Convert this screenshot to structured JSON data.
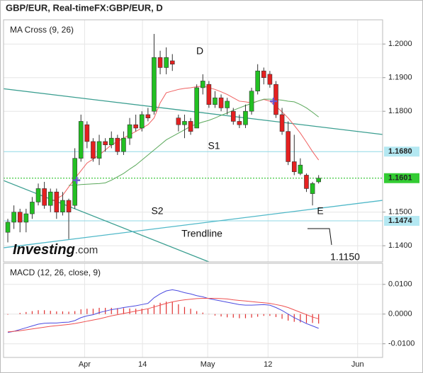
{
  "title": "GBP/EUR, Real-timeFX:GBP/EUR, D",
  "logo": {
    "brand": "Investing",
    "suffix": ".com"
  },
  "annotations": [
    "D",
    "S1",
    "S2",
    "Trendline",
    "E",
    "1.1150"
  ],
  "chart_data": [
    {
      "type": "candlestick",
      "title": "MA Cross (9, 26)",
      "xlim": [
        -0.7,
        61.5
      ],
      "xticks": [
        {
          "value": 12.6,
          "label": "Apr"
        },
        {
          "value": 22.1,
          "label": "14"
        },
        {
          "value": 32.8,
          "label": "May"
        },
        {
          "value": 42.7,
          "label": "12"
        },
        {
          "value": 57.4,
          "label": "Jun"
        }
      ],
      "ylim": [
        1.1352,
        1.2072
      ],
      "yticks": [
        {
          "value": 1.2,
          "label": "1.2000"
        },
        {
          "value": 1.19,
          "label": "1.1900"
        },
        {
          "value": 1.18,
          "label": "1.1800"
        },
        {
          "value": 1.15,
          "label": "1.1500"
        },
        {
          "value": 1.14,
          "label": "1.1400"
        }
      ],
      "grid": true,
      "up_color": "#22c022",
      "down_color": "#e52020",
      "open": [
        1.144,
        1.147,
        1.15,
        1.147,
        1.1495,
        1.153,
        1.157,
        1.152,
        1.156,
        1.15,
        1.1535,
        1.152,
        1.166,
        1.176,
        1.171,
        1.166,
        1.171,
        1.17,
        1.172,
        1.168,
        1.172,
        1.176,
        1.175,
        1.179,
        1.18,
        1.196,
        1.193,
        1.195,
        1.178,
        1.176,
        1.177,
        1.175,
        1.187,
        1.188,
        1.182,
        1.184,
        1.181,
        1.18,
        1.177,
        1.176,
        1.18,
        1.186,
        1.192,
        1.191,
        1.188,
        1.179,
        1.174,
        1.165,
        1.1615,
        1.161,
        1.1555,
        1.159
      ],
      "high": [
        1.148,
        1.152,
        1.151,
        1.151,
        1.1545,
        1.1585,
        1.159,
        1.157,
        1.157,
        1.156,
        1.154,
        1.169,
        1.179,
        1.177,
        1.172,
        1.173,
        1.172,
        1.174,
        1.173,
        1.174,
        1.178,
        1.179,
        1.18,
        1.181,
        1.203,
        1.198,
        1.199,
        1.197,
        1.179,
        1.179,
        1.178,
        1.188,
        1.191,
        1.189,
        1.186,
        1.185,
        1.184,
        1.181,
        1.179,
        1.182,
        1.187,
        1.194,
        1.193,
        1.192,
        1.189,
        1.181,
        1.177,
        1.173,
        1.166,
        1.1615,
        1.159,
        1.161
      ],
      "low": [
        1.141,
        1.145,
        1.144,
        1.144,
        1.148,
        1.152,
        1.151,
        1.15,
        1.148,
        1.149,
        1.142,
        1.151,
        1.165,
        1.169,
        1.165,
        1.164,
        1.168,
        1.169,
        1.167,
        1.167,
        1.17,
        1.174,
        1.174,
        1.177,
        1.179,
        1.191,
        1.191,
        1.192,
        1.174,
        1.172,
        1.173,
        1.175,
        1.185,
        1.181,
        1.181,
        1.18,
        1.179,
        1.176,
        1.175,
        1.175,
        1.179,
        1.185,
        1.188,
        1.187,
        1.178,
        1.173,
        1.164,
        1.161,
        1.161,
        1.156,
        1.152,
        1.1585
      ],
      "close": [
        1.147,
        1.15,
        1.147,
        1.1495,
        1.153,
        1.157,
        1.152,
        1.156,
        1.15,
        1.1535,
        1.15,
        1.166,
        1.177,
        1.171,
        1.166,
        1.171,
        1.17,
        1.172,
        1.168,
        1.172,
        1.176,
        1.175,
        1.179,
        1.178,
        1.196,
        1.193,
        1.196,
        1.194,
        1.176,
        1.177,
        1.174,
        1.187,
        1.189,
        1.182,
        1.184,
        1.181,
        1.183,
        1.177,
        1.176,
        1.18,
        1.186,
        1.192,
        1.19,
        1.188,
        1.179,
        1.174,
        1.165,
        1.162,
        1.164,
        1.157,
        1.1585,
        1.1601
      ],
      "series": [
        {
          "color": "#f06060",
          "values": [
            null,
            null,
            null,
            null,
            null,
            null,
            null,
            1.153,
            1.154,
            1.155,
            1.1575,
            1.16,
            1.1623,
            1.1646,
            1.1658,
            1.167,
            1.1685,
            1.17,
            1.171,
            1.172,
            1.173,
            1.174,
            1.175,
            1.176,
            1.178,
            1.1825,
            1.1855,
            1.186,
            1.1865,
            1.1868,
            1.187,
            1.1873,
            1.1875,
            1.187,
            1.1865,
            1.1858,
            1.185,
            1.184,
            1.183,
            1.1828,
            1.1825,
            1.183,
            1.1835,
            1.183,
            1.1815,
            1.1798,
            1.178,
            1.1758,
            1.1735,
            1.1708,
            1.168,
            1.1655
          ]
        },
        {
          "color": "#5aa85a",
          "values": [
            null,
            null,
            null,
            null,
            null,
            null,
            null,
            null,
            null,
            null,
            1.158,
            1.158,
            1.1582,
            1.1583,
            1.1584,
            1.1585,
            1.1587,
            1.1595,
            1.1605,
            1.1615,
            1.1628,
            1.164,
            1.1655,
            1.167,
            1.1685,
            1.17,
            1.1715,
            1.1725,
            1.1735,
            1.1745,
            1.1755,
            1.1762,
            1.1768,
            1.1773,
            1.178,
            1.1788,
            1.1795,
            1.1803,
            1.181,
            1.1817,
            1.1823,
            1.183,
            1.1836,
            1.1836,
            1.1835,
            1.1833,
            1.183,
            1.1828,
            1.182,
            1.181,
            1.1797,
            1.1783
          ]
        }
      ],
      "hlines": [
        {
          "value": 1.168,
          "label": "1.1680",
          "color": "#8fd8e6",
          "box": "#b4e8f2"
        },
        {
          "value": 1.1601,
          "label": "1.1601",
          "color": "#11bb11",
          "box": "#33cc33",
          "dotted": true
        },
        {
          "value": 1.1474,
          "label": "1.1474",
          "color": "#8fd8e6",
          "box": "#b4e8f2"
        }
      ],
      "trendlines": [
        {
          "x": [
            -0.7,
            61.5
          ],
          "y": [
            1.1867,
            1.1731
          ],
          "color": "#3a9e90"
        },
        {
          "x": [
            -0.7,
            33.0
          ],
          "y": [
            1.1594,
            1.1352
          ],
          "color": "#3a9e90"
        },
        {
          "x": [
            -0.7,
            61.5
          ],
          "y": [
            1.1394,
            1.1535
          ],
          "color": "#4fb8c8"
        }
      ],
      "crosses": [
        {
          "x": 11.3,
          "y": 1.1595
        },
        {
          "x": 43.6,
          "y": 1.183
        }
      ]
    },
    {
      "type": "macd",
      "title": "MACD (12, 26, close, 9)",
      "ylim": [
        -0.0146,
        0.0171
      ],
      "yticks": [
        {
          "value": 0.01,
          "label": "0.0100"
        },
        {
          "value": 0,
          "label": "0.0000"
        },
        {
          "value": -0.01,
          "label": "-0.0100"
        }
      ],
      "series": [
        {
          "color": "#4a4ae0",
          "values": [
            -0.0062,
            -0.0058,
            -0.0052,
            -0.0046,
            -0.004,
            -0.0034,
            -0.0031,
            -0.003,
            -0.003,
            -0.0028,
            -0.0027,
            -0.0022,
            -0.0012,
            -0.0006,
            -0.0002,
            0.0005,
            0.001,
            0.0015,
            0.0018,
            0.0022,
            0.0025,
            0.0028,
            0.0032,
            0.0036,
            0.0055,
            0.0068,
            0.0078,
            0.0082,
            0.0078,
            0.0072,
            0.0068,
            0.0062,
            0.0058,
            0.0052,
            0.0048,
            0.0044,
            0.004,
            0.0036,
            0.0032,
            0.003,
            0.003,
            0.0031,
            0.0032,
            0.003,
            0.0022,
            0.0012,
            0.0,
            -0.0012,
            -0.0022,
            -0.0032,
            -0.004,
            -0.0048
          ]
        },
        {
          "color": "#ee5050",
          "values": [
            -0.006,
            -0.0058,
            -0.0056,
            -0.0053,
            -0.005,
            -0.0047,
            -0.0044,
            -0.0041,
            -0.0039,
            -0.0037,
            -0.0035,
            -0.0032,
            -0.0028,
            -0.0024,
            -0.002,
            -0.0016,
            -0.0011,
            -0.0006,
            -0.0002,
            0.0002,
            0.0006,
            0.001,
            0.0014,
            0.0018,
            0.0024,
            0.003,
            0.0036,
            0.0041,
            0.0045,
            0.0048,
            0.005,
            0.0052,
            0.0053,
            0.0053,
            0.0053,
            0.0052,
            0.0051,
            0.0048,
            0.0046,
            0.0044,
            0.0042,
            0.004,
            0.0038,
            0.0036,
            0.0032,
            0.0028,
            0.0022,
            0.0014,
            0.0006,
            -0.0002,
            -0.001,
            -0.0016
          ]
        }
      ],
      "histogram": {
        "color": "#e03030",
        "values": [
          -0.0002,
          0,
          0.0004,
          0.0007,
          0.001,
          0.0013,
          0.0013,
          0.0011,
          0.0009,
          0.0009,
          0.0008,
          0.001,
          0.0016,
          0.0018,
          0.0018,
          0.0021,
          0.0021,
          0.0021,
          0.002,
          0.002,
          0.0019,
          0.0018,
          0.0018,
          0.0018,
          0.0031,
          0.0038,
          0.0042,
          0.0041,
          0.0033,
          0.0024,
          0.0018,
          0.001,
          0.0005,
          -0.0001,
          -0.0005,
          -0.0008,
          -0.0011,
          -0.0012,
          -0.0014,
          -0.0014,
          -0.0012,
          -0.0009,
          -0.0006,
          -0.0006,
          -0.001,
          -0.0016,
          -0.0022,
          -0.0026,
          -0.0028,
          -0.003,
          -0.003,
          -0.0032
        ]
      }
    }
  ]
}
